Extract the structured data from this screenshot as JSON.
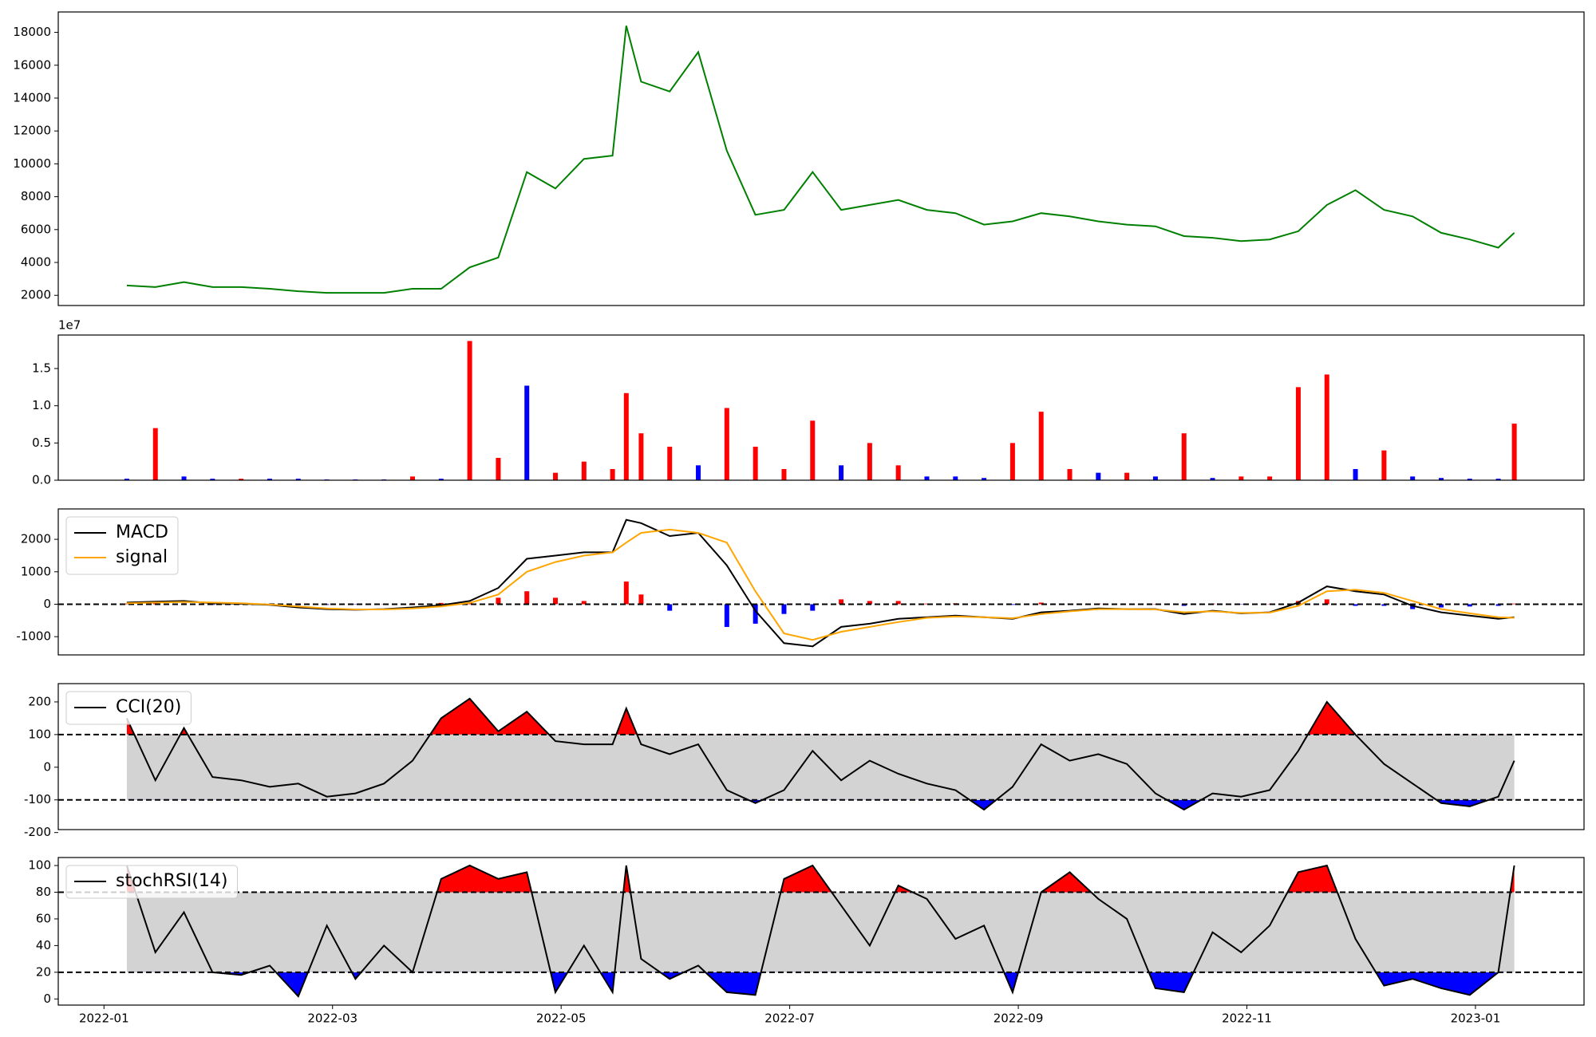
{
  "chart_data": [
    {
      "type": "line",
      "color": "green",
      "x": [
        0.2,
        0.45,
        0.7,
        0.95,
        1.2,
        1.45,
        1.7,
        1.95,
        2.2,
        2.45,
        2.7,
        2.95,
        3.2,
        3.45,
        3.7,
        3.95,
        4.2,
        4.45,
        4.57,
        4.7,
        4.95,
        5.2,
        5.45,
        5.7,
        5.95,
        6.2,
        6.45,
        6.7,
        6.95,
        7.2,
        7.45,
        7.7,
        7.95,
        8.2,
        8.45,
        8.7,
        8.95,
        9.2,
        9.45,
        9.7,
        9.95,
        10.2,
        10.45,
        10.7,
        10.95,
        11.2,
        11.45,
        11.7,
        11.95,
        12.2,
        12.34
      ],
      "values": [
        2600,
        2500,
        2800,
        2500,
        2500,
        2400,
        2250,
        2150,
        2150,
        2150,
        2400,
        2400,
        3700,
        4300,
        9500,
        8500,
        10300,
        10500,
        18400,
        15000,
        14400,
        16800,
        10800,
        6900,
        7200,
        9500,
        7200,
        7500,
        7800,
        7200,
        7000,
        6300,
        6500,
        7000,
        6800,
        6500,
        6300,
        6200,
        5600,
        5500,
        5300,
        5400,
        5900,
        7500,
        8400,
        7200,
        6800,
        5800,
        5400,
        4900,
        5800
      ],
      "xlim": [
        -0.4,
        12.95
      ],
      "ylim": [
        1380,
        19240
      ],
      "yticks": [
        2000,
        4000,
        6000,
        8000,
        10000,
        12000,
        14000,
        16000,
        18000
      ]
    },
    {
      "type": "bar",
      "offset_label": "1e7",
      "x": [
        0.2,
        0.45,
        0.7,
        0.95,
        1.2,
        1.45,
        1.7,
        1.95,
        2.2,
        2.45,
        2.7,
        2.95,
        3.2,
        3.45,
        3.7,
        3.95,
        4.2,
        4.45,
        4.57,
        4.7,
        4.95,
        5.2,
        5.45,
        5.7,
        5.95,
        6.2,
        6.45,
        6.7,
        6.95,
        7.2,
        7.45,
        7.7,
        7.95,
        8.2,
        8.45,
        8.7,
        8.95,
        9.2,
        9.45,
        9.7,
        9.95,
        10.2,
        10.45,
        10.7,
        10.95,
        11.2,
        11.45,
        11.7,
        11.95,
        12.2,
        12.34
      ],
      "values": [
        0.02,
        0.7,
        0.05,
        0.02,
        0.02,
        0.02,
        0.02,
        0.01,
        0.01,
        0.01,
        0.05,
        0.02,
        1.87,
        0.3,
        1.27,
        0.1,
        0.25,
        0.15,
        1.17,
        0.63,
        0.45,
        0.2,
        0.97,
        0.45,
        0.15,
        0.8,
        0.2,
        0.5,
        0.2,
        0.05,
        0.05,
        0.03,
        0.5,
        0.92,
        0.15,
        0.1,
        0.1,
        0.05,
        0.63,
        0.03,
        0.05,
        0.05,
        1.25,
        1.42,
        0.15,
        0.4,
        0.05,
        0.03,
        0.02,
        0.02,
        0.76
      ],
      "colors": [
        "blue",
        "red",
        "blue",
        "blue",
        "red",
        "blue",
        "blue",
        "blue",
        "blue",
        "blue",
        "red",
        "blue",
        "red",
        "red",
        "blue",
        "red",
        "red",
        "red",
        "red",
        "red",
        "red",
        "blue",
        "red",
        "red",
        "red",
        "red",
        "blue",
        "red",
        "red",
        "blue",
        "blue",
        "blue",
        "red",
        "red",
        "red",
        "blue",
        "red",
        "blue",
        "red",
        "blue",
        "red",
        "red",
        "red",
        "red",
        "blue",
        "red",
        "blue",
        "blue",
        "blue",
        "blue",
        "red"
      ],
      "xlim": [
        -0.4,
        12.95
      ],
      "ylim": [
        0,
        1.95
      ],
      "yticks": [
        {
          "value": 0,
          "label": "0.0"
        },
        {
          "value": 0.5,
          "label": "0.5"
        },
        {
          "value": 1,
          "label": "1.0"
        },
        {
          "value": 1.5,
          "label": "1.5"
        }
      ]
    },
    {
      "type": "macd",
      "legend": "upper left",
      "x": [
        0.2,
        0.45,
        0.7,
        0.95,
        1.2,
        1.45,
        1.7,
        1.95,
        2.2,
        2.45,
        2.7,
        2.95,
        3.2,
        3.45,
        3.7,
        3.95,
        4.2,
        4.45,
        4.57,
        4.7,
        4.95,
        5.2,
        5.45,
        5.7,
        5.95,
        6.2,
        6.45,
        6.7,
        6.95,
        7.2,
        7.45,
        7.7,
        7.95,
        8.2,
        8.45,
        8.7,
        8.95,
        9.2,
        9.45,
        9.7,
        9.95,
        10.2,
        10.45,
        10.7,
        10.95,
        11.2,
        11.45,
        11.7,
        11.95,
        12.2,
        12.34
      ],
      "series": [
        {
          "name": "MACD",
          "color": "black",
          "values": [
            50,
            80,
            100,
            30,
            20,
            -20,
            -100,
            -150,
            -170,
            -150,
            -100,
            -30,
            100,
            500,
            1400,
            1500,
            1600,
            1600,
            2600,
            2500,
            2100,
            2200,
            1200,
            -200,
            -1200,
            -1300,
            -700,
            -600,
            -450,
            -400,
            -350,
            -400,
            -450,
            -250,
            -200,
            -130,
            -150,
            -150,
            -300,
            -200,
            -280,
            -250,
            50,
            550,
            400,
            300,
            -50,
            -250,
            -350,
            -450,
            -400
          ]
        },
        {
          "name": "signal",
          "color": "orange",
          "values": [
            30,
            50,
            70,
            50,
            30,
            -10,
            -70,
            -130,
            -160,
            -160,
            -130,
            -70,
            40,
            300,
            1000,
            1300,
            1500,
            1600,
            1900,
            2200,
            2300,
            2200,
            1900,
            400,
            -900,
            -1100,
            -850,
            -700,
            -550,
            -420,
            -380,
            -400,
            -430,
            -300,
            -220,
            -150,
            -150,
            -160,
            -250,
            -220,
            -270,
            -260,
            -50,
            400,
            450,
            350,
            100,
            -150,
            -280,
            -400,
            -420
          ]
        }
      ],
      "histogram": {
        "positive_color": "red",
        "negative_color": "blue",
        "values": [
          20,
          30,
          30,
          -20,
          -10,
          -10,
          -30,
          -20,
          -10,
          10,
          30,
          40,
          60,
          200,
          400,
          200,
          100,
          0,
          700,
          300,
          -200,
          0,
          -700,
          -600,
          -300,
          -200,
          150,
          100,
          100,
          20,
          30,
          0,
          -20,
          50,
          20,
          20,
          0,
          10,
          -50,
          20,
          -10,
          10,
          100,
          150,
          -50,
          -50,
          -150,
          -100,
          -70,
          -50,
          20
        ]
      },
      "hlines": [
        0
      ],
      "xlim": [
        -0.4,
        12.95
      ],
      "ylim": [
        -1562,
        2937
      ],
      "yticks": [
        -1000,
        0,
        1000,
        2000
      ]
    },
    {
      "type": "oscillator",
      "legend": "upper left",
      "x": [
        0.2,
        0.45,
        0.7,
        0.95,
        1.2,
        1.45,
        1.7,
        1.95,
        2.2,
        2.45,
        2.7,
        2.95,
        3.2,
        3.45,
        3.7,
        3.95,
        4.2,
        4.45,
        4.57,
        4.7,
        4.95,
        5.2,
        5.45,
        5.7,
        5.95,
        6.2,
        6.45,
        6.7,
        6.95,
        7.2,
        7.45,
        7.7,
        7.95,
        8.2,
        8.45,
        8.7,
        8.95,
        9.2,
        9.45,
        9.7,
        9.95,
        10.2,
        10.45,
        10.7,
        10.95,
        11.2,
        11.45,
        11.7,
        11.95,
        12.2,
        12.34
      ],
      "series": [
        {
          "name": "CCI(20)",
          "color": "black",
          "values": [
            150,
            -40,
            120,
            -30,
            -40,
            -60,
            -50,
            -90,
            -80,
            -50,
            20,
            150,
            210,
            110,
            170,
            80,
            70,
            70,
            180,
            70,
            40,
            70,
            -70,
            -110,
            -70,
            50,
            -40,
            20,
            -20,
            -50,
            -70,
            -130,
            -60,
            70,
            20,
            40,
            10,
            -80,
            -130,
            -80,
            -90,
            -70,
            50,
            200,
            100,
            10,
            -50,
            -110,
            -120,
            -90,
            20
          ]
        }
      ],
      "hlines": [
        100,
        -100
      ],
      "band_color": "lightgray",
      "above_color": "red",
      "below_color": "blue",
      "xlim": [
        -0.4,
        12.95
      ],
      "ylim": [
        -191,
        256
      ],
      "yticks": [
        -200,
        -100,
        0,
        100,
        200
      ]
    },
    {
      "type": "oscillator",
      "legend": "upper left",
      "x": [
        0.2,
        0.45,
        0.7,
        0.95,
        1.2,
        1.45,
        1.7,
        1.95,
        2.2,
        2.45,
        2.7,
        2.95,
        3.2,
        3.45,
        3.7,
        3.95,
        4.2,
        4.45,
        4.57,
        4.7,
        4.95,
        5.2,
        5.45,
        5.7,
        5.95,
        6.2,
        6.45,
        6.7,
        6.95,
        7.2,
        7.45,
        7.7,
        7.95,
        8.2,
        8.45,
        8.7,
        8.95,
        9.2,
        9.45,
        9.7,
        9.95,
        10.2,
        10.45,
        10.7,
        10.95,
        11.2,
        11.45,
        11.7,
        11.95,
        12.2,
        12.34
      ],
      "series": [
        {
          "name": "stochRSI(14)",
          "color": "black",
          "values": [
            100,
            35,
            65,
            20,
            18,
            25,
            2,
            55,
            15,
            40,
            20,
            90,
            100,
            90,
            95,
            5,
            40,
            5,
            100,
            30,
            15,
            25,
            5,
            3,
            90,
            100,
            70,
            40,
            85,
            75,
            45,
            55,
            5,
            80,
            95,
            75,
            60,
            8,
            5,
            50,
            35,
            55,
            95,
            100,
            45,
            10,
            15,
            8,
            3,
            20,
            100
          ]
        }
      ],
      "hlines": [
        80,
        20
      ],
      "band_color": "lightgray",
      "above_color": "red",
      "below_color": "blue",
      "xlim": [
        -0.4,
        12.95
      ],
      "ylim": [
        -4.6,
        106
      ],
      "yticks": [
        0,
        20,
        40,
        60,
        80,
        100
      ],
      "xticks": [
        {
          "value": 0,
          "label": "2022-01"
        },
        {
          "value": 2,
          "label": "2022-03"
        },
        {
          "value": 4,
          "label": "2022-05"
        },
        {
          "value": 6,
          "label": "2022-07"
        },
        {
          "value": 8,
          "label": "2022-09"
        },
        {
          "value": 10,
          "label": "2022-11"
        },
        {
          "value": 12,
          "label": "2023-01"
        }
      ]
    }
  ]
}
